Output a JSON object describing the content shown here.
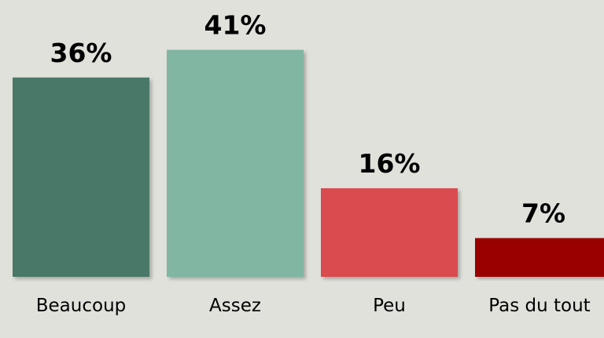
{
  "chart_data": {
    "type": "bar",
    "categories": [
      "Beaucoup",
      "Assez",
      "Peu",
      "Pas du tout"
    ],
    "values": [
      36,
      41,
      16,
      7
    ],
    "value_labels": [
      "36%",
      "41%",
      "16%",
      "7%"
    ],
    "colors": [
      "#487868",
      "#80b6a2",
      "#d94c50",
      "#990000"
    ]
  }
}
